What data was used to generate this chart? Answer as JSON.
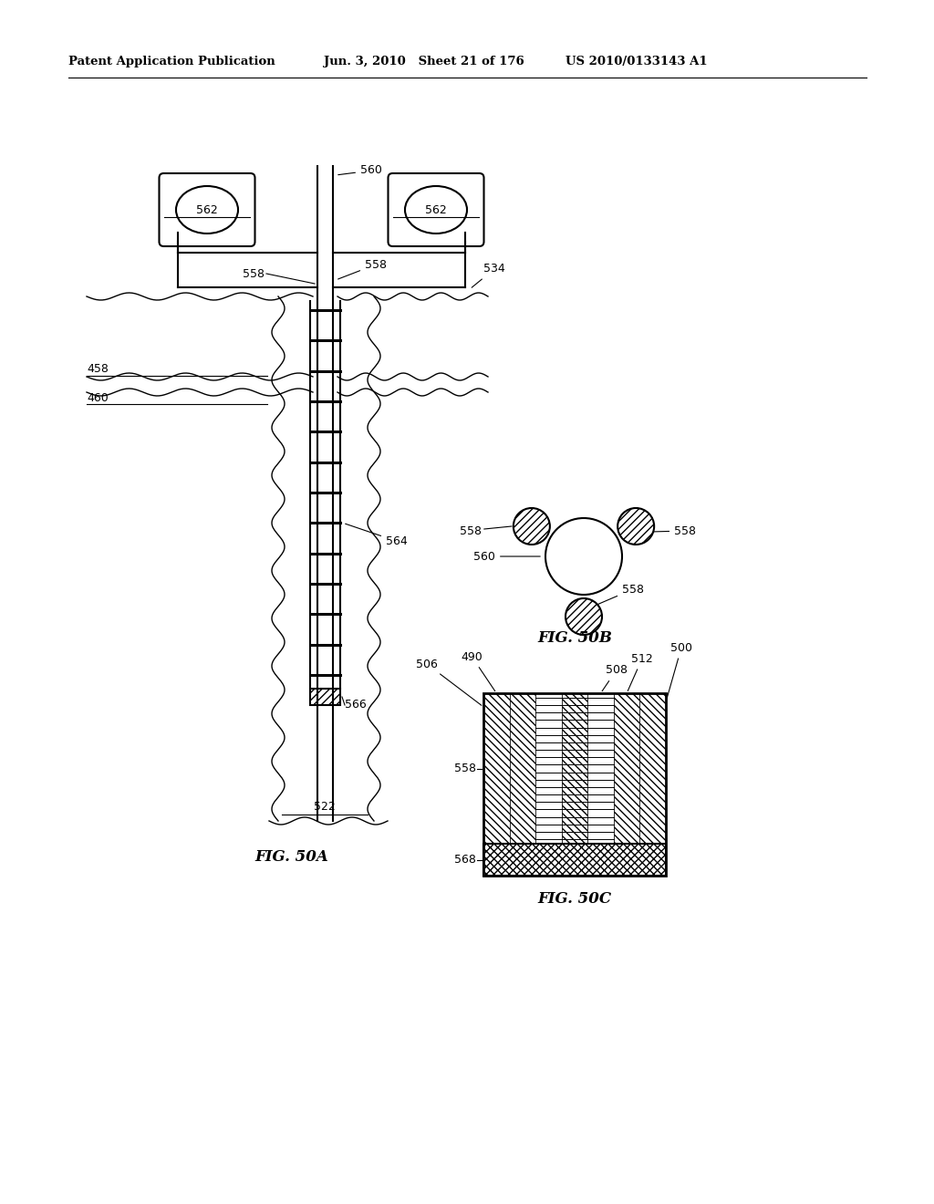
{
  "header_left": "Patent Application Publication",
  "header_mid": "Jun. 3, 2010   Sheet 21 of 176",
  "header_right": "US 2010/0133143 A1",
  "fig50a_label": "FIG. 50A",
  "fig50b_label": "FIG. 50B",
  "fig50c_label": "FIG. 50C",
  "bg_color": "#ffffff",
  "line_color": "#000000"
}
